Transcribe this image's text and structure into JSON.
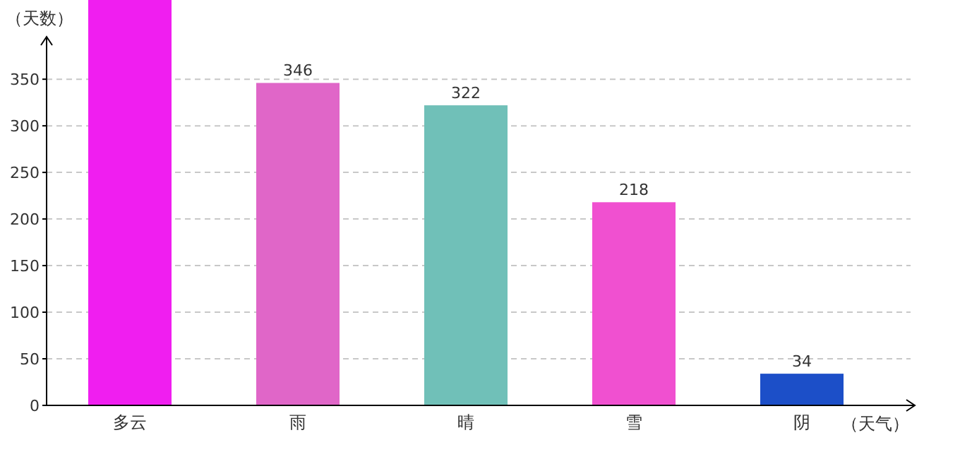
{
  "chart_data": {
    "type": "bar",
    "ylabel": "（天数）",
    "xlabel": "（天气）",
    "categories": [
      "多云",
      "雨",
      "晴",
      "雪",
      "阴"
    ],
    "values": [
      435,
      346,
      322,
      218,
      34
    ],
    "value_labels": [
      null,
      "346",
      "322",
      "218",
      "34"
    ],
    "colors": [
      "#f01ef0",
      "#e066c8",
      "#70c0b8",
      "#f050d0",
      "#1c4fc8"
    ],
    "ylim": [
      0,
      435
    ],
    "yticks": [
      0,
      50,
      100,
      150,
      200,
      250,
      300,
      350
    ],
    "grid": "y"
  }
}
